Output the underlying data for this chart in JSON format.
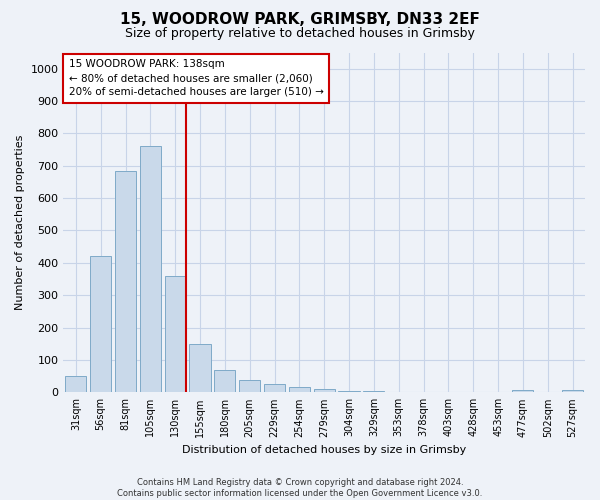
{
  "title1": "15, WOODROW PARK, GRIMSBY, DN33 2EF",
  "title2": "Size of property relative to detached houses in Grimsby",
  "xlabel": "Distribution of detached houses by size in Grimsby",
  "ylabel": "Number of detached properties",
  "categories": [
    "31sqm",
    "56sqm",
    "81sqm",
    "105sqm",
    "130sqm",
    "155sqm",
    "180sqm",
    "205sqm",
    "229sqm",
    "254sqm",
    "279sqm",
    "304sqm",
    "329sqm",
    "353sqm",
    "378sqm",
    "403sqm",
    "428sqm",
    "453sqm",
    "477sqm",
    "502sqm",
    "527sqm"
  ],
  "values": [
    50,
    420,
    685,
    760,
    360,
    150,
    70,
    38,
    25,
    17,
    10,
    5,
    5,
    2,
    2,
    0,
    0,
    0,
    8,
    0,
    8
  ],
  "bar_color": "#c9d9ea",
  "bar_edge_color": "#7faac8",
  "vline_x_idx": 4,
  "vline_color": "#cc0000",
  "annotation_text": "15 WOODROW PARK: 138sqm\n← 80% of detached houses are smaller (2,060)\n20% of semi-detached houses are larger (510) →",
  "annotation_box_facecolor": "#ffffff",
  "annotation_box_edgecolor": "#cc0000",
  "ylim_max": 1050,
  "yticks": [
    0,
    100,
    200,
    300,
    400,
    500,
    600,
    700,
    800,
    900,
    1000
  ],
  "grid_color": "#c8d4e8",
  "bg_color": "#eef2f8",
  "footer1": "Contains HM Land Registry data © Crown copyright and database right 2024.",
  "footer2": "Contains public sector information licensed under the Open Government Licence v3.0.",
  "title1_fontsize": 11,
  "title2_fontsize": 9,
  "ylabel_fontsize": 8,
  "xlabel_fontsize": 8,
  "tick_fontsize": 8,
  "annotation_fontsize": 7.5
}
